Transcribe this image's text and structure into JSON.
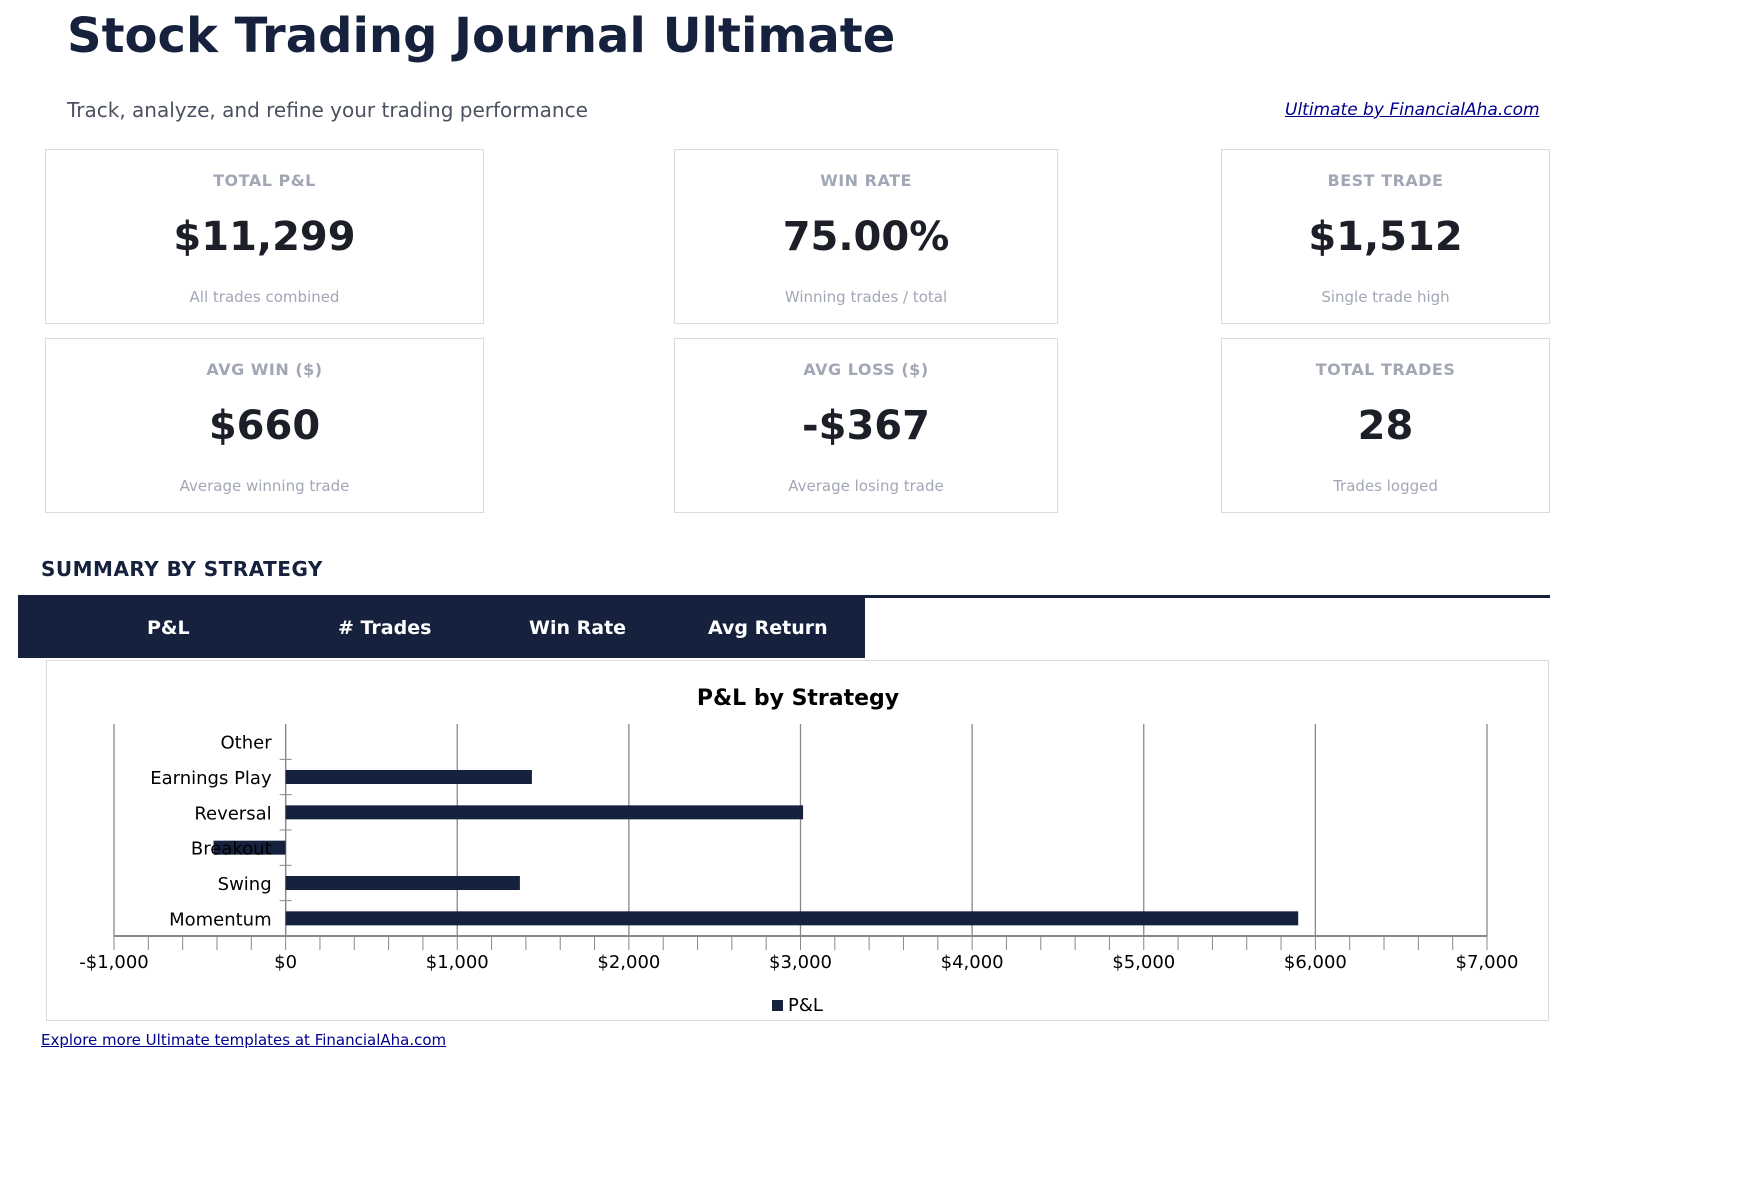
{
  "header": {
    "title": "Stock Trading Journal Ultimate",
    "subtitle": "Track, analyze, and refine your trading performance",
    "brand_link": "Ultimate by FinancialAha.com"
  },
  "kpis": [
    {
      "label": "TOTAL P&L",
      "value": "$11,299",
      "sub": "All trades combined"
    },
    {
      "label": "WIN RATE",
      "value": "75.00%",
      "sub": "Winning trades / total"
    },
    {
      "label": "BEST TRADE",
      "value": "$1,512",
      "sub": "Single trade high"
    },
    {
      "label": "AVG WIN ($)",
      "value": "$660",
      "sub": "Average winning trade"
    },
    {
      "label": "AVG LOSS ($)",
      "value": "-$367",
      "sub": "Average losing trade"
    },
    {
      "label": "TOTAL TRADES",
      "value": "28",
      "sub": "Trades logged"
    }
  ],
  "summary": {
    "title": "SUMMARY BY STRATEGY",
    "columns": [
      "P&L",
      "# Trades",
      "Win Rate",
      "Avg Return"
    ]
  },
  "chart_data": {
    "type": "bar",
    "orientation": "horizontal",
    "title": "P&L by Strategy",
    "categories": [
      "Momentum",
      "Swing",
      "Breakout",
      "Reversal",
      "Earnings Play",
      "Other"
    ],
    "series": [
      {
        "name": "P&L",
        "values": [
          5900,
          1365,
          -420,
          3015,
          1435,
          0
        ],
        "color": "#15213d"
      }
    ],
    "xlim": [
      -1000,
      7000
    ],
    "xticks": [
      "-$1,000",
      "$0",
      "$1,000",
      "$2,000",
      "$3,000",
      "$4,000",
      "$5,000",
      "$6,000",
      "$7,000"
    ],
    "grid": true,
    "legend": "bottom"
  },
  "footer": {
    "link": "Explore more Ultimate templates at FinancialAha.com"
  }
}
